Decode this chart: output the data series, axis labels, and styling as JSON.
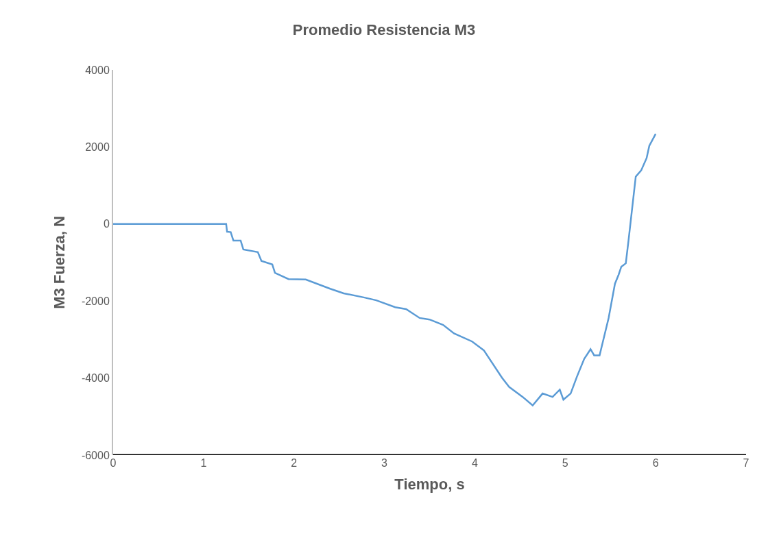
{
  "chart_data": {
    "type": "line",
    "title": "Promedio Resistencia M3",
    "xlabel": "Tiempo, s",
    "ylabel": "M3 Fuerza, N",
    "xlim": [
      0,
      7
    ],
    "xticks": [
      0,
      1,
      2,
      3,
      4,
      5,
      6,
      7
    ],
    "ylim": [
      -6000,
      4000
    ],
    "yticks": [
      -6000,
      -4000,
      -2000,
      0,
      2000,
      4000
    ],
    "marker": "none",
    "line_style": "solid",
    "series": [
      {
        "color": "#5b9bd5",
        "x": [
          0,
          1.25,
          1.26,
          1.3,
          1.33,
          1.41,
          1.44,
          1.6,
          1.64,
          1.76,
          1.79,
          1.94,
          2.13,
          2.4,
          2.55,
          2.78,
          2.91,
          3.12,
          3.24,
          3.39,
          3.5,
          3.65,
          3.77,
          3.97,
          4.1,
          4.3,
          4.38,
          4.53,
          4.64,
          4.75,
          4.86,
          4.94,
          4.98,
          5.06,
          5.13,
          5.21,
          5.28,
          5.32,
          5.38,
          5.48,
          5.55,
          5.59,
          5.62,
          5.67,
          5.7,
          5.78,
          5.84,
          5.9,
          5.93,
          6.0
        ],
        "values": [
          0,
          0,
          -200,
          -210,
          -430,
          -430,
          -660,
          -730,
          -960,
          -1050,
          -1270,
          -1430,
          -1440,
          -1680,
          -1800,
          -1910,
          -1980,
          -2160,
          -2210,
          -2440,
          -2480,
          -2620,
          -2840,
          -3050,
          -3280,
          -3990,
          -4230,
          -4490,
          -4710,
          -4400,
          -4490,
          -4300,
          -4560,
          -4400,
          -3960,
          -3500,
          -3250,
          -3410,
          -3410,
          -2440,
          -1550,
          -1320,
          -1110,
          -1020,
          -430,
          1230,
          1390,
          1710,
          2030,
          2340
        ]
      }
    ]
  }
}
